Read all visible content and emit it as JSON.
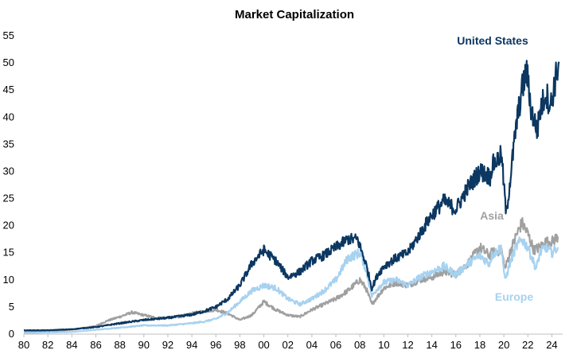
{
  "chart_data": {
    "type": "line",
    "title": "Market Capitalization",
    "xlabel": "",
    "ylabel": "",
    "xlim": [
      1980,
      2024.9
    ],
    "ylim": [
      0,
      55
    ],
    "y_ticks": [
      0,
      5,
      10,
      15,
      20,
      25,
      30,
      35,
      40,
      45,
      50,
      55
    ],
    "x_ticks": [
      1980,
      1982,
      1984,
      1986,
      1988,
      1990,
      1992,
      1994,
      1996,
      1998,
      2000,
      2002,
      2004,
      2006,
      2008,
      2010,
      2012,
      2014,
      2016,
      2018,
      2020,
      2022,
      2024
    ],
    "x_tick_labels": [
      "80",
      "82",
      "84",
      "86",
      "88",
      "90",
      "92",
      "94",
      "96",
      "98",
      "00",
      "02",
      "04",
      "06",
      "08",
      "10",
      "12",
      "14",
      "16",
      "18",
      "20",
      "22",
      "24"
    ],
    "grid": false,
    "legend": "inline labels",
    "series": [
      {
        "name": "Asia",
        "label": "Asia",
        "color": "#a0a0a0",
        "points": [
          [
            1980,
            0.4
          ],
          [
            1982,
            0.5
          ],
          [
            1984,
            0.8
          ],
          [
            1986,
            1.5
          ],
          [
            1987,
            2.5
          ],
          [
            1988,
            3.2
          ],
          [
            1989,
            4.0
          ],
          [
            1990,
            3.5
          ],
          [
            1991,
            3.0
          ],
          [
            1992,
            3.0
          ],
          [
            1993,
            3.2
          ],
          [
            1994,
            3.8
          ],
          [
            1995,
            4.2
          ],
          [
            1996,
            4.5
          ],
          [
            1997,
            3.8
          ],
          [
            1998,
            2.6
          ],
          [
            1999,
            3.5
          ],
          [
            2000,
            6.0
          ],
          [
            2001,
            4.5
          ],
          [
            2002,
            3.5
          ],
          [
            2003,
            3.2
          ],
          [
            2004,
            4.5
          ],
          [
            2005,
            5.5
          ],
          [
            2006,
            6.5
          ],
          [
            2007,
            8.0
          ],
          [
            2008,
            10.0
          ],
          [
            2008.5,
            8.5
          ],
          [
            2009,
            5.5
          ],
          [
            2009.5,
            7.0
          ],
          [
            2010,
            8.5
          ],
          [
            2011,
            9.5
          ],
          [
            2012,
            9.0
          ],
          [
            2013,
            10.0
          ],
          [
            2014,
            10.5
          ],
          [
            2015,
            11.5
          ],
          [
            2016,
            11.0
          ],
          [
            2017,
            13.0
          ],
          [
            2018,
            16.0
          ],
          [
            2018.8,
            14.5
          ],
          [
            2019,
            15.0
          ],
          [
            2019.8,
            15.5
          ],
          [
            2020.1,
            12.0
          ],
          [
            2020.5,
            15.0
          ],
          [
            2021,
            18.0
          ],
          [
            2021.5,
            20.5
          ],
          [
            2022,
            18.5
          ],
          [
            2022.5,
            15.5
          ],
          [
            2023,
            16.0
          ],
          [
            2023.5,
            17.0
          ],
          [
            2024,
            17.0
          ],
          [
            2024.5,
            18.0
          ]
        ]
      },
      {
        "name": "Europe",
        "label": "Europe",
        "color": "#a7d2f0",
        "points": [
          [
            1980,
            0.2
          ],
          [
            1982,
            0.3
          ],
          [
            1984,
            0.4
          ],
          [
            1986,
            0.8
          ],
          [
            1988,
            1.2
          ],
          [
            1990,
            1.6
          ],
          [
            1992,
            1.6
          ],
          [
            1994,
            2.0
          ],
          [
            1995,
            2.3
          ],
          [
            1996,
            2.8
          ],
          [
            1997,
            4.0
          ],
          [
            1998,
            6.0
          ],
          [
            1999,
            8.0
          ],
          [
            2000,
            9.0
          ],
          [
            2001,
            8.5
          ],
          [
            2002,
            6.5
          ],
          [
            2003,
            5.5
          ],
          [
            2004,
            6.5
          ],
          [
            2005,
            8.0
          ],
          [
            2006,
            10.0
          ],
          [
            2007,
            14.0
          ],
          [
            2008,
            15.0
          ],
          [
            2008.5,
            12.0
          ],
          [
            2009,
            7.0
          ],
          [
            2009.5,
            8.5
          ],
          [
            2010,
            9.5
          ],
          [
            2011,
            10.0
          ],
          [
            2012,
            9.0
          ],
          [
            2013,
            10.5
          ],
          [
            2014,
            11.5
          ],
          [
            2015,
            12.5
          ],
          [
            2016,
            11.0
          ],
          [
            2017,
            13.0
          ],
          [
            2018,
            14.5
          ],
          [
            2018.8,
            13.0
          ],
          [
            2019,
            14.5
          ],
          [
            2019.8,
            16.0
          ],
          [
            2020.1,
            9.8
          ],
          [
            2020.5,
            13.0
          ],
          [
            2021,
            16.0
          ],
          [
            2021.5,
            17.5
          ],
          [
            2022,
            16.0
          ],
          [
            2022.7,
            12.0
          ],
          [
            2023,
            15.0
          ],
          [
            2023.5,
            16.0
          ],
          [
            2024,
            15.0
          ],
          [
            2024.5,
            16.0
          ]
        ]
      },
      {
        "name": "United States",
        "label": "United States",
        "color": "#0b3761",
        "points": [
          [
            1980,
            0.7
          ],
          [
            1982,
            0.7
          ],
          [
            1984,
            0.9
          ],
          [
            1986,
            1.3
          ],
          [
            1988,
            2.0
          ],
          [
            1990,
            2.6
          ],
          [
            1992,
            3.0
          ],
          [
            1994,
            3.6
          ],
          [
            1995,
            4.2
          ],
          [
            1996,
            5.0
          ],
          [
            1997,
            6.5
          ],
          [
            1998,
            9.0
          ],
          [
            1999,
            13.0
          ],
          [
            2000,
            15.5
          ],
          [
            2001,
            13.5
          ],
          [
            2002,
            10.5
          ],
          [
            2003,
            11.5
          ],
          [
            2004,
            13.5
          ],
          [
            2005,
            14.5
          ],
          [
            2006,
            16.0
          ],
          [
            2007,
            17.5
          ],
          [
            2007.8,
            17.5
          ],
          [
            2008.5,
            13.0
          ],
          [
            2009,
            8.5
          ],
          [
            2009.5,
            11.0
          ],
          [
            2010,
            12.5
          ],
          [
            2011,
            14.0
          ],
          [
            2012,
            15.0
          ],
          [
            2013,
            18.5
          ],
          [
            2014,
            22.0
          ],
          [
            2015,
            24.5
          ],
          [
            2016,
            23.0
          ],
          [
            2017,
            27.0
          ],
          [
            2018,
            30.0
          ],
          [
            2018.9,
            29.0
          ],
          [
            2019,
            31.0
          ],
          [
            2019.8,
            33.0
          ],
          [
            2020.2,
            22.0
          ],
          [
            2020.6,
            30.0
          ],
          [
            2021,
            38.0
          ],
          [
            2021.5,
            45.0
          ],
          [
            2021.9,
            48.5
          ],
          [
            2022.3,
            41.0
          ],
          [
            2022.8,
            37.5
          ],
          [
            2023,
            41.0
          ],
          [
            2023.5,
            44.5
          ],
          [
            2023.9,
            42.0
          ],
          [
            2024.3,
            47.0
          ],
          [
            2024.6,
            50.2
          ]
        ]
      }
    ]
  }
}
